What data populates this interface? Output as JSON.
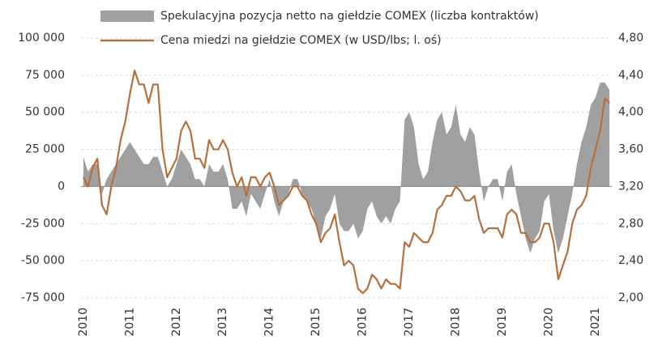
{
  "chart_data": {
    "type": "area-line",
    "x": [
      2010.0,
      2010.1,
      2010.2,
      2010.3,
      2010.4,
      2010.5,
      2010.6,
      2010.7,
      2010.8,
      2010.9,
      2011.0,
      2011.1,
      2011.2,
      2011.3,
      2011.4,
      2011.5,
      2011.6,
      2011.7,
      2011.8,
      2011.9,
      2012.0,
      2012.1,
      2012.2,
      2012.3,
      2012.4,
      2012.5,
      2012.6,
      2012.7,
      2012.8,
      2012.9,
      2013.0,
      2013.1,
      2013.2,
      2013.3,
      2013.4,
      2013.5,
      2013.6,
      2013.7,
      2013.8,
      2013.9,
      2014.0,
      2014.1,
      2014.2,
      2014.3,
      2014.4,
      2014.5,
      2014.6,
      2014.7,
      2014.8,
      2014.9,
      2015.0,
      2015.1,
      2015.2,
      2015.3,
      2015.4,
      2015.5,
      2015.6,
      2015.7,
      2015.8,
      2015.9,
      2016.0,
      2016.1,
      2016.2,
      2016.3,
      2016.4,
      2016.5,
      2016.6,
      2016.7,
      2016.8,
      2016.9,
      2017.0,
      2017.1,
      2017.2,
      2017.3,
      2017.4,
      2017.5,
      2017.6,
      2017.7,
      2017.8,
      2017.9,
      2018.0,
      2018.1,
      2018.2,
      2018.3,
      2018.4,
      2018.5,
      2018.6,
      2018.7,
      2018.8,
      2018.9,
      2019.0,
      2019.1,
      2019.2,
      2019.3,
      2019.4,
      2019.5,
      2019.6,
      2019.7,
      2019.8,
      2019.9,
      2020.0,
      2020.1,
      2020.2,
      2020.3,
      2020.4,
      2020.5,
      2020.6,
      2020.7,
      2020.8,
      2020.9,
      2021.0,
      2021.1,
      2021.2,
      2021.3
    ],
    "series": [
      {
        "name": "Spekulacyjna pozycja netto na giełdzie COMEX (liczba kontraktów)",
        "color": "#a0a0a0",
        "kind": "area",
        "values": [
          20000,
          10000,
          15000,
          15000,
          -5000,
          5000,
          10000,
          15000,
          20000,
          25000,
          30000,
          25000,
          20000,
          15000,
          15000,
          20000,
          20000,
          10000,
          0,
          5000,
          15000,
          25000,
          20000,
          15000,
          5000,
          5000,
          0,
          15000,
          10000,
          10000,
          15000,
          5000,
          -15000,
          -15000,
          -10000,
          -20000,
          -5000,
          -10000,
          -15000,
          -5000,
          5000,
          -10000,
          -20000,
          -10000,
          -5000,
          5000,
          5000,
          -5000,
          -10000,
          -15000,
          -25000,
          -35000,
          -20000,
          -15000,
          -5000,
          -25000,
          -30000,
          -30000,
          -25000,
          -35000,
          -30000,
          -15000,
          -10000,
          -20000,
          -25000,
          -20000,
          -25000,
          -15000,
          -10000,
          45000,
          50000,
          40000,
          15000,
          5000,
          10000,
          30000,
          45000,
          50000,
          35000,
          40000,
          55000,
          35000,
          30000,
          40000,
          35000,
          10000,
          -10000,
          0,
          5000,
          5000,
          -10000,
          10000,
          15000,
          -5000,
          -20000,
          -35000,
          -45000,
          -35000,
          -30000,
          -10000,
          -5000,
          -30000,
          -45000,
          -35000,
          -20000,
          -5000,
          15000,
          30000,
          40000,
          55000,
          60000,
          70000,
          70000,
          65000
        ]
      },
      {
        "name": "Cena miedzi na giełdzie COMEX (w USD/lbs; l. oś)",
        "color": "#b5703e",
        "kind": "line",
        "axis": "y2",
        "values": [
          3.3,
          3.2,
          3.4,
          3.5,
          3.0,
          2.9,
          3.2,
          3.4,
          3.7,
          3.9,
          4.2,
          4.45,
          4.3,
          4.3,
          4.1,
          4.3,
          4.3,
          3.6,
          3.3,
          3.4,
          3.5,
          3.8,
          3.9,
          3.8,
          3.5,
          3.5,
          3.4,
          3.7,
          3.6,
          3.6,
          3.7,
          3.6,
          3.35,
          3.2,
          3.3,
          3.1,
          3.3,
          3.3,
          3.2,
          3.3,
          3.35,
          3.2,
          3.0,
          3.05,
          3.1,
          3.2,
          3.2,
          3.1,
          3.05,
          2.9,
          2.8,
          2.6,
          2.7,
          2.75,
          2.9,
          2.6,
          2.35,
          2.4,
          2.35,
          2.1,
          2.05,
          2.1,
          2.25,
          2.2,
          2.1,
          2.2,
          2.15,
          2.15,
          2.1,
          2.6,
          2.55,
          2.7,
          2.65,
          2.6,
          2.6,
          2.7,
          2.95,
          3.0,
          3.1,
          3.1,
          3.2,
          3.15,
          3.05,
          3.05,
          3.1,
          2.85,
          2.7,
          2.75,
          2.75,
          2.75,
          2.65,
          2.9,
          2.95,
          2.9,
          2.7,
          2.7,
          2.6,
          2.6,
          2.65,
          2.8,
          2.8,
          2.6,
          2.2,
          2.35,
          2.5,
          2.8,
          2.95,
          3.0,
          3.1,
          3.4,
          3.6,
          3.8,
          4.15,
          4.1
        ]
      }
    ],
    "xlim": [
      2009.95,
      2021.35
    ],
    "xticks": [
      2010,
      2011,
      2012,
      2013,
      2014,
      2015,
      2016,
      2017,
      2018,
      2019,
      2020,
      2021
    ],
    "ylim": [
      -75000,
      100000
    ],
    "yticks": [
      {
        "value": -75000,
        "label": "-75 000"
      },
      {
        "value": -50000,
        "label": "-50 000"
      },
      {
        "value": -25000,
        "label": "-25 000"
      },
      0,
      {
        "value": 25000,
        "label": "25 000"
      },
      {
        "value": 50000,
        "label": "50 000"
      },
      {
        "value": 75000,
        "label": "75 000"
      },
      {
        "value": 100000,
        "label": "100 000"
      }
    ],
    "y2lim": [
      2.0,
      4.8
    ],
    "y2ticks": [
      {
        "value": 2.0,
        "label": "2,00"
      },
      {
        "value": 2.4,
        "label": "2,40"
      },
      {
        "value": 2.8,
        "label": "2,80"
      },
      {
        "value": 3.2,
        "label": "3,20"
      },
      {
        "value": 3.6,
        "label": "3,60"
      },
      {
        "value": 4.0,
        "label": "4,00"
      },
      {
        "value": 4.4,
        "label": "4,40"
      },
      {
        "value": 4.8,
        "label": "4,80"
      }
    ],
    "grid": true,
    "legend": "top"
  }
}
